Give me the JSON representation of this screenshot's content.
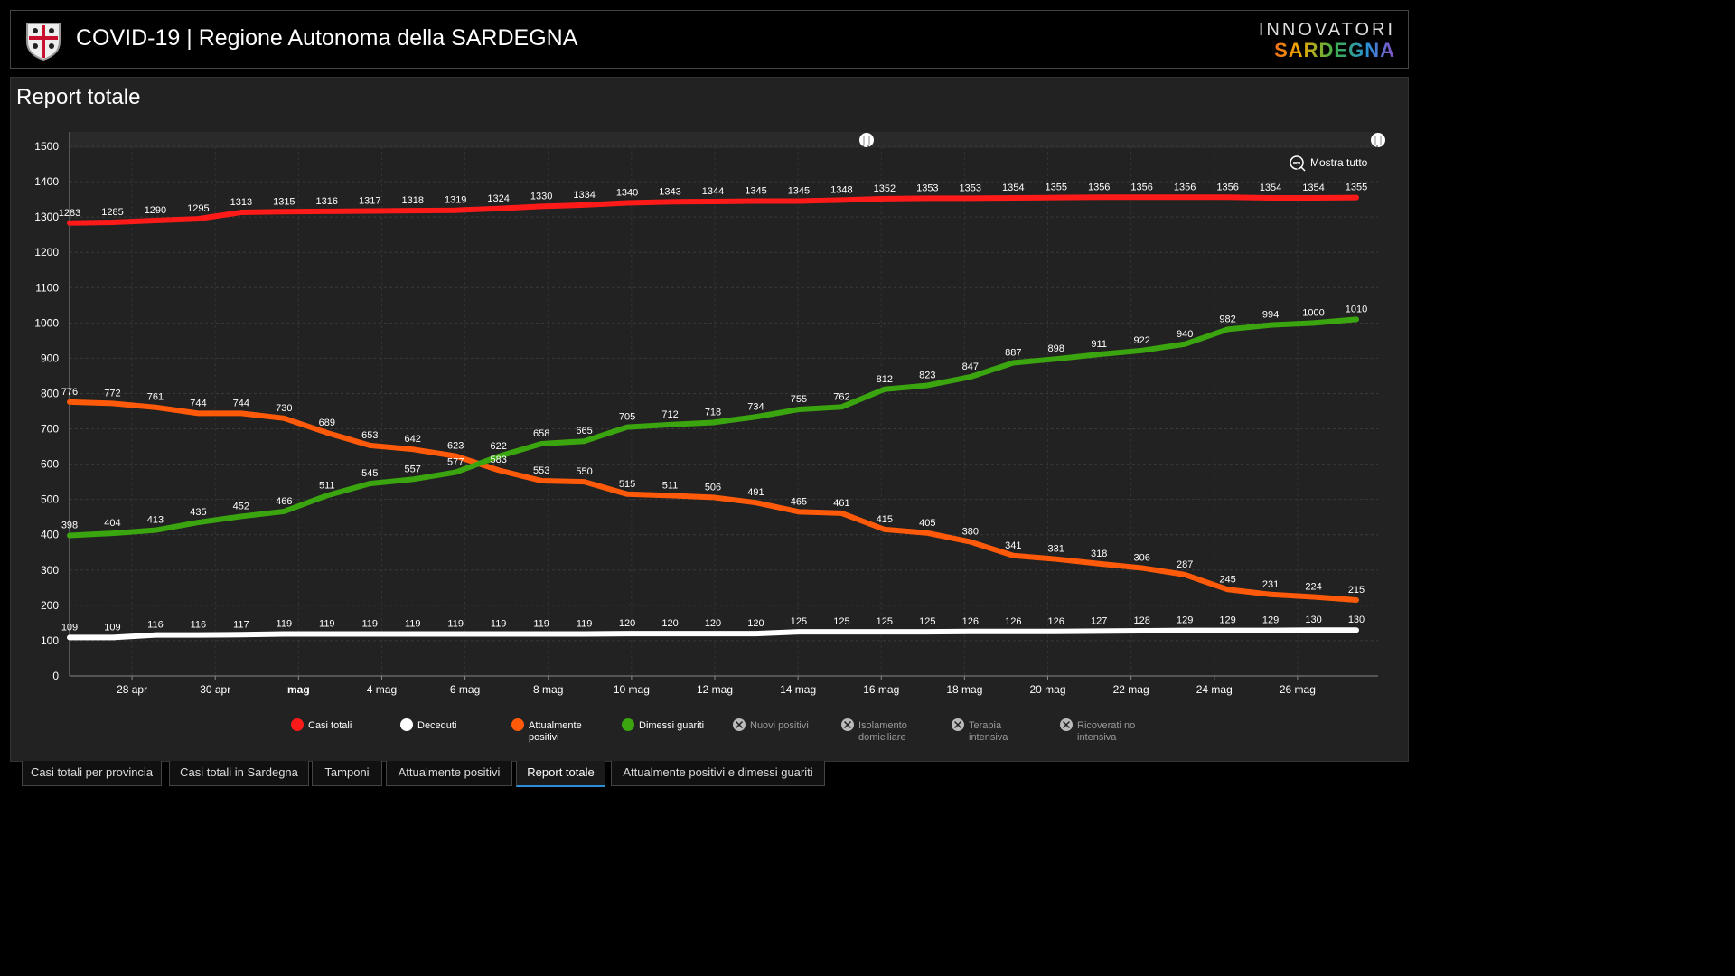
{
  "header": {
    "title": "COVID-19 | Regione Autonoma della SARDEGNA",
    "brand_top": "INNOVATORI",
    "brand_bottom": "SARDEGNA"
  },
  "panel": {
    "title": "Report totale",
    "zoom_label": "Mostra tutto"
  },
  "tabs": [
    {
      "label": "Casi totali per provincia",
      "active": false
    },
    {
      "label": "Casi totali in Sardegna",
      "active": false
    },
    {
      "label": "Tamponi",
      "active": false
    },
    {
      "label": "Attualmente positivi",
      "active": false
    },
    {
      "label": "Report totale",
      "active": true
    },
    {
      "label": "Attualmente positivi e dimessi guariti",
      "active": false
    }
  ],
  "chart_data": {
    "type": "line",
    "y_ticks": [
      0,
      100,
      200,
      300,
      400,
      500,
      600,
      700,
      800,
      900,
      1000,
      1100,
      1200,
      1300,
      1400,
      1500
    ],
    "ylim": [
      0,
      1500
    ],
    "x_ticks": [
      "28 apr",
      "30 apr",
      "mag",
      "4 mag",
      "6 mag",
      "8 mag",
      "10 mag",
      "12 mag",
      "14 mag",
      "16 mag",
      "18 mag",
      "20 mag",
      "22 mag",
      "24 mag",
      "26 mag"
    ],
    "grid": true,
    "series": [
      {
        "name": "Casi totali",
        "color": "#ff1a1a",
        "active": true,
        "values": [
          1283,
          1285,
          1290,
          1295,
          1313,
          1315,
          1316,
          1317,
          1318,
          1319,
          1324,
          1330,
          1334,
          1340,
          1343,
          1344,
          1345,
          1345,
          1348,
          1352,
          1353,
          1353,
          1354,
          1355,
          1356,
          1356,
          1356,
          1356,
          1354,
          1354,
          1355
        ]
      },
      {
        "name": "Deceduti",
        "color": "#ffffff",
        "active": true,
        "values": [
          109,
          109,
          116,
          116,
          117,
          119,
          119,
          119,
          119,
          119,
          119,
          119,
          119,
          120,
          120,
          120,
          120,
          125,
          125,
          125,
          125,
          126,
          126,
          126,
          127,
          128,
          129,
          129,
          129,
          130,
          130
        ]
      },
      {
        "name": "Attualmente positivi",
        "color": "#ff5a0a",
        "active": true,
        "values": [
          776,
          772,
          761,
          744,
          744,
          730,
          689,
          653,
          642,
          623,
          583,
          553,
          550,
          515,
          511,
          506,
          491,
          465,
          461,
          415,
          405,
          380,
          341,
          331,
          318,
          306,
          287,
          245,
          231,
          224,
          215
        ]
      },
      {
        "name": "Dimessi guariti",
        "color": "#3ba510",
        "active": true,
        "values": [
          398,
          404,
          413,
          435,
          452,
          466,
          511,
          545,
          557,
          577,
          622,
          658,
          665,
          705,
          712,
          718,
          734,
          755,
          762,
          812,
          823,
          847,
          887,
          898,
          911,
          922,
          940,
          982,
          994,
          1000,
          1010
        ]
      },
      {
        "name": "Nuovi positivi",
        "color": "#aaaaaa",
        "active": false
      },
      {
        "name": "Isolamento domiciliare",
        "color": "#aaaaaa",
        "active": false
      },
      {
        "name": "Terapia intensiva",
        "color": "#aaaaaa",
        "active": false
      },
      {
        "name": "Ricoverati no intensiva",
        "color": "#aaaaaa",
        "active": false
      }
    ]
  }
}
